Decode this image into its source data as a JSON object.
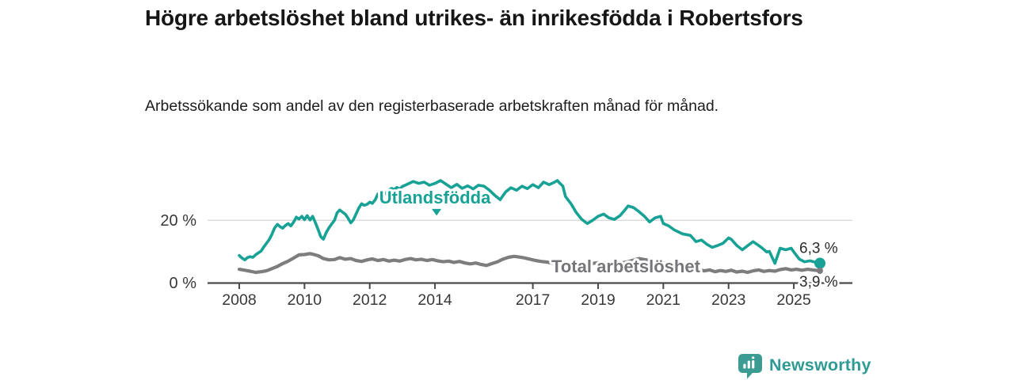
{
  "header": {
    "title": "Högre arbetslöshet bland utrikes- än inrikesfödda i Robertsfors",
    "subtitle": "Arbetssökande som andel av den registerbaserade arbetskraften månad för månad."
  },
  "branding": {
    "logo_text": "Newsworthy",
    "logo_icon": "bar-chart-pin-icon",
    "brand_color": "#2F9B94"
  },
  "chart_data": {
    "type": "line",
    "title": "Högre arbetslöshet bland utrikes- än inrikesfödda i Robertsfors",
    "subtitle": "Arbetssökande som andel av den registerbaserade arbetskraften månad för månad.",
    "xlabel": "",
    "ylabel": "",
    "x_range": [
      2007.85,
      2026.0
    ],
    "ylim": [
      0,
      35
    ],
    "grid": "single horizontal gridline at 20%",
    "legend_position": "inline-labels",
    "colors": {
      "accent_teal": "#17A295",
      "series_gray": "#7D7D80",
      "axis": "#4A4A4A",
      "gridline": "#DBDBDB",
      "tick_label": "#383838",
      "value_label": "#2B2B2B"
    },
    "x_ticks": [
      {
        "year": 2008,
        "label": "2008"
      },
      {
        "year": 2010,
        "label": "2010"
      },
      {
        "year": 2012,
        "label": "2012"
      },
      {
        "year": 2014,
        "label": "2014"
      },
      {
        "year": 2017,
        "label": "2017"
      },
      {
        "year": 2019,
        "label": "2019"
      },
      {
        "year": 2021,
        "label": "2021"
      },
      {
        "year": 2023,
        "label": "2023"
      },
      {
        "year": 2025,
        "label": "2025"
      }
    ],
    "y_ticks": [
      {
        "value": 0,
        "label": "0 %"
      },
      {
        "value": 20,
        "label": "20 %"
      }
    ],
    "series_labels": [
      {
        "text": "Utlandsfödda",
        "year": 2014.0,
        "value": 25.4,
        "color": "#17A295",
        "pointer": true
      },
      {
        "text": "Total arbetslöshet",
        "year": 2019.85,
        "value": 3.4,
        "color": "#76767A",
        "pointer": false
      }
    ],
    "series": [
      {
        "name": "Utlandsfödda",
        "color": "#17A295",
        "end_label": "6,3 %",
        "end_value": 6.3,
        "end_dot_radius": 7,
        "line_width": 3.6,
        "points": [
          [
            2008.0,
            8.8
          ],
          [
            2008.08,
            8.0
          ],
          [
            2008.17,
            7.4
          ],
          [
            2008.25,
            8.1
          ],
          [
            2008.33,
            8.4
          ],
          [
            2008.42,
            8.2
          ],
          [
            2008.5,
            9.0
          ],
          [
            2008.58,
            9.6
          ],
          [
            2008.67,
            10.2
          ],
          [
            2008.75,
            11.5
          ],
          [
            2008.83,
            12.6
          ],
          [
            2008.92,
            13.9
          ],
          [
            2009.0,
            15.5
          ],
          [
            2009.08,
            17.5
          ],
          [
            2009.17,
            18.7
          ],
          [
            2009.25,
            18.0
          ],
          [
            2009.33,
            17.5
          ],
          [
            2009.42,
            18.4
          ],
          [
            2009.5,
            19.0
          ],
          [
            2009.58,
            18.2
          ],
          [
            2009.67,
            19.5
          ],
          [
            2009.75,
            21.0
          ],
          [
            2009.83,
            20.4
          ],
          [
            2009.92,
            21.3
          ],
          [
            2010.0,
            20.2
          ],
          [
            2010.08,
            21.5
          ],
          [
            2010.17,
            20.1
          ],
          [
            2010.25,
            21.3
          ],
          [
            2010.33,
            19.4
          ],
          [
            2010.42,
            17.0
          ],
          [
            2010.5,
            14.8
          ],
          [
            2010.58,
            14.0
          ],
          [
            2010.67,
            16.2
          ],
          [
            2010.75,
            17.6
          ],
          [
            2010.83,
            18.8
          ],
          [
            2010.92,
            20.0
          ],
          [
            2011.0,
            22.4
          ],
          [
            2011.08,
            23.3
          ],
          [
            2011.17,
            22.6
          ],
          [
            2011.25,
            22.0
          ],
          [
            2011.33,
            20.8
          ],
          [
            2011.42,
            19.2
          ],
          [
            2011.5,
            20.2
          ],
          [
            2011.58,
            22.0
          ],
          [
            2011.67,
            24.0
          ],
          [
            2011.75,
            25.3
          ],
          [
            2011.83,
            24.8
          ],
          [
            2011.92,
            25.1
          ],
          [
            2012.0,
            25.8
          ],
          [
            2012.08,
            25.4
          ],
          [
            2012.17,
            26.6
          ],
          [
            2012.25,
            28.4
          ],
          [
            2012.33,
            28.9
          ],
          [
            2012.42,
            28.0
          ],
          [
            2012.5,
            28.8
          ],
          [
            2012.58,
            29.6
          ],
          [
            2012.67,
            30.2
          ],
          [
            2012.75,
            29.8
          ],
          [
            2012.83,
            30.5
          ],
          [
            2012.92,
            30.0
          ],
          [
            2013.0,
            30.8
          ],
          [
            2013.17,
            31.6
          ],
          [
            2013.33,
            32.4
          ],
          [
            2013.5,
            31.8
          ],
          [
            2013.67,
            32.2
          ],
          [
            2013.83,
            31.2
          ],
          [
            2014.0,
            31.8
          ],
          [
            2014.17,
            32.7
          ],
          [
            2014.33,
            31.6
          ],
          [
            2014.5,
            30.4
          ],
          [
            2014.67,
            31.5
          ],
          [
            2014.83,
            30.2
          ],
          [
            2015.0,
            31.0
          ],
          [
            2015.17,
            30.0
          ],
          [
            2015.33,
            31.2
          ],
          [
            2015.5,
            30.9
          ],
          [
            2015.67,
            29.6
          ],
          [
            2015.83,
            28.0
          ],
          [
            2016.0,
            26.6
          ],
          [
            2016.08,
            27.8
          ],
          [
            2016.17,
            29.1
          ],
          [
            2016.33,
            30.4
          ],
          [
            2016.5,
            29.6
          ],
          [
            2016.67,
            30.9
          ],
          [
            2016.83,
            30.1
          ],
          [
            2017.0,
            31.4
          ],
          [
            2017.17,
            30.4
          ],
          [
            2017.33,
            32.2
          ],
          [
            2017.5,
            31.4
          ],
          [
            2017.67,
            32.2
          ],
          [
            2017.75,
            32.7
          ],
          [
            2017.83,
            31.8
          ],
          [
            2017.92,
            30.9
          ],
          [
            2018.0,
            27.6
          ],
          [
            2018.17,
            25.3
          ],
          [
            2018.33,
            22.5
          ],
          [
            2018.5,
            20.3
          ],
          [
            2018.67,
            19.0
          ],
          [
            2018.83,
            20.0
          ],
          [
            2019.0,
            21.3
          ],
          [
            2019.17,
            22.0
          ],
          [
            2019.33,
            20.8
          ],
          [
            2019.5,
            20.3
          ],
          [
            2019.67,
            21.5
          ],
          [
            2019.83,
            23.4
          ],
          [
            2019.92,
            24.6
          ],
          [
            2020.08,
            24.1
          ],
          [
            2020.25,
            22.8
          ],
          [
            2020.42,
            21.3
          ],
          [
            2020.58,
            19.5
          ],
          [
            2020.75,
            20.8
          ],
          [
            2020.92,
            21.3
          ],
          [
            2021.0,
            19.0
          ],
          [
            2021.17,
            18.2
          ],
          [
            2021.33,
            17.0
          ],
          [
            2021.58,
            15.7
          ],
          [
            2021.83,
            15.2
          ],
          [
            2022.0,
            13.2
          ],
          [
            2022.17,
            13.7
          ],
          [
            2022.33,
            12.4
          ],
          [
            2022.5,
            11.4
          ],
          [
            2022.67,
            12.0
          ],
          [
            2022.83,
            12.7
          ],
          [
            2023.0,
            14.4
          ],
          [
            2023.08,
            14.0
          ],
          [
            2023.25,
            12.0
          ],
          [
            2023.42,
            10.6
          ],
          [
            2023.58,
            11.9
          ],
          [
            2023.75,
            13.2
          ],
          [
            2023.92,
            12.0
          ],
          [
            2024.0,
            11.4
          ],
          [
            2024.17,
            9.9
          ],
          [
            2024.25,
            10.1
          ],
          [
            2024.42,
            6.3
          ],
          [
            2024.58,
            11.1
          ],
          [
            2024.75,
            10.6
          ],
          [
            2024.92,
            11.1
          ],
          [
            2025.0,
            9.9
          ],
          [
            2025.17,
            7.6
          ],
          [
            2025.33,
            6.8
          ],
          [
            2025.5,
            7.1
          ],
          [
            2025.67,
            6.6
          ],
          [
            2025.8,
            6.3
          ]
        ]
      },
      {
        "name": "Total arbetslöshet",
        "color": "#7D7D80",
        "end_label": "3,9 %",
        "end_value": 3.9,
        "end_dot_radius": 4,
        "line_width": 4.2,
        "points": [
          [
            2008.0,
            4.4
          ],
          [
            2008.17,
            4.1
          ],
          [
            2008.33,
            3.8
          ],
          [
            2008.5,
            3.4
          ],
          [
            2008.67,
            3.6
          ],
          [
            2008.83,
            3.9
          ],
          [
            2009.0,
            4.6
          ],
          [
            2009.17,
            5.3
          ],
          [
            2009.33,
            6.2
          ],
          [
            2009.5,
            7.0
          ],
          [
            2009.67,
            8.0
          ],
          [
            2009.83,
            9.0
          ],
          [
            2010.0,
            9.1
          ],
          [
            2010.17,
            9.4
          ],
          [
            2010.25,
            9.2
          ],
          [
            2010.42,
            8.7
          ],
          [
            2010.58,
            7.8
          ],
          [
            2010.75,
            7.4
          ],
          [
            2010.92,
            7.5
          ],
          [
            2011.08,
            8.1
          ],
          [
            2011.25,
            7.6
          ],
          [
            2011.42,
            7.8
          ],
          [
            2011.58,
            7.2
          ],
          [
            2011.75,
            6.9
          ],
          [
            2011.92,
            7.4
          ],
          [
            2012.08,
            7.7
          ],
          [
            2012.25,
            7.2
          ],
          [
            2012.42,
            7.5
          ],
          [
            2012.58,
            7.0
          ],
          [
            2012.75,
            7.3
          ],
          [
            2012.92,
            7.0
          ],
          [
            2013.08,
            7.5
          ],
          [
            2013.25,
            7.8
          ],
          [
            2013.42,
            7.4
          ],
          [
            2013.58,
            7.6
          ],
          [
            2013.75,
            7.2
          ],
          [
            2013.92,
            7.5
          ],
          [
            2014.08,
            7.1
          ],
          [
            2014.25,
            6.8
          ],
          [
            2014.42,
            7.0
          ],
          [
            2014.58,
            6.6
          ],
          [
            2014.75,
            6.9
          ],
          [
            2014.92,
            6.4
          ],
          [
            2015.08,
            6.1
          ],
          [
            2015.25,
            6.4
          ],
          [
            2015.42,
            5.9
          ],
          [
            2015.58,
            5.6
          ],
          [
            2015.75,
            6.2
          ],
          [
            2015.92,
            6.8
          ],
          [
            2016.08,
            7.6
          ],
          [
            2016.25,
            8.2
          ],
          [
            2016.42,
            8.5
          ],
          [
            2016.58,
            8.3
          ],
          [
            2016.75,
            8.0
          ],
          [
            2016.92,
            7.6
          ],
          [
            2017.08,
            7.2
          ],
          [
            2017.25,
            6.9
          ],
          [
            2017.42,
            6.7
          ],
          [
            2017.58,
            6.4
          ],
          [
            2017.75,
            6.6
          ],
          [
            2017.92,
            6.2
          ],
          [
            2018.08,
            6.0
          ],
          [
            2018.25,
            6.3
          ],
          [
            2018.42,
            6.0
          ],
          [
            2018.58,
            5.8
          ],
          [
            2018.75,
            6.1
          ],
          [
            2018.92,
            6.4
          ],
          [
            2019.08,
            6.6
          ],
          [
            2019.25,
            6.3
          ],
          [
            2019.42,
            6.0
          ],
          [
            2019.58,
            6.2
          ],
          [
            2019.75,
            6.5
          ],
          [
            2019.92,
            6.8
          ],
          [
            2020.08,
            7.3
          ],
          [
            2020.25,
            7.8
          ],
          [
            2020.42,
            7.5
          ],
          [
            2020.58,
            7.2
          ],
          [
            2020.75,
            6.9
          ],
          [
            2020.92,
            6.6
          ],
          [
            2021.08,
            6.2
          ],
          [
            2021.25,
            5.8
          ],
          [
            2021.42,
            5.5
          ],
          [
            2021.58,
            5.2
          ],
          [
            2021.75,
            4.9
          ],
          [
            2021.92,
            4.6
          ],
          [
            2022.08,
            4.3
          ],
          [
            2022.25,
            3.9
          ],
          [
            2022.42,
            4.2
          ],
          [
            2022.58,
            3.6
          ],
          [
            2022.75,
            4.0
          ],
          [
            2022.92,
            3.7
          ],
          [
            2023.08,
            4.1
          ],
          [
            2023.25,
            3.5
          ],
          [
            2023.42,
            3.8
          ],
          [
            2023.58,
            3.4
          ],
          [
            2023.75,
            3.9
          ],
          [
            2023.92,
            4.2
          ],
          [
            2024.08,
            3.7
          ],
          [
            2024.25,
            4.0
          ],
          [
            2024.42,
            3.8
          ],
          [
            2024.58,
            4.3
          ],
          [
            2024.75,
            4.6
          ],
          [
            2024.92,
            4.2
          ],
          [
            2025.08,
            4.4
          ],
          [
            2025.25,
            4.1
          ],
          [
            2025.42,
            4.4
          ],
          [
            2025.58,
            4.2
          ],
          [
            2025.8,
            3.9
          ]
        ]
      }
    ]
  }
}
